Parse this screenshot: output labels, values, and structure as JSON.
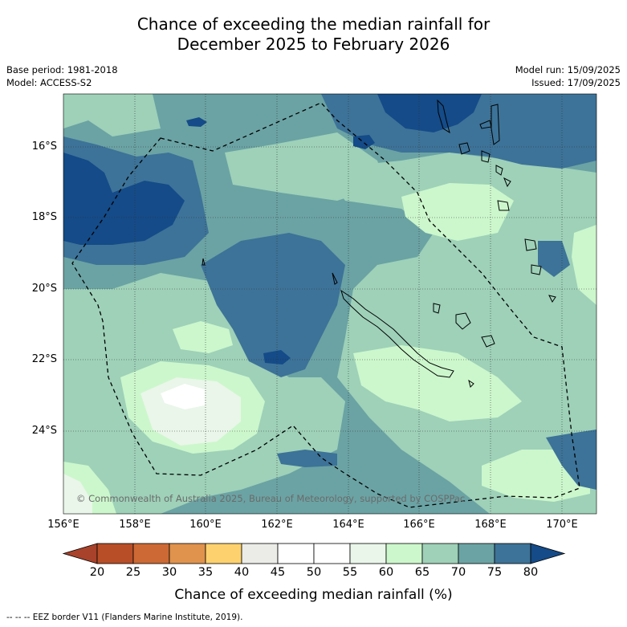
{
  "title": {
    "line1": "Chance of exceeding the median rainfall for",
    "line2": "December 2025 to February 2026"
  },
  "meta_left": {
    "base_period": "Base period: 1981-2018",
    "model": "Model: ACCESS-S2"
  },
  "meta_right": {
    "model_run": "Model run: 15/09/2025",
    "issued": "Issued: 17/09/2025"
  },
  "map": {
    "lat_labels": [
      "16°S",
      "18°S",
      "20°S",
      "22°S",
      "24°S"
    ],
    "lon_labels": [
      "156°E",
      "158°E",
      "160°E",
      "162°E",
      "164°E",
      "166°E",
      "168°E",
      "170°E"
    ],
    "copyright": "© Commonwealth of Australia 2025, Bureau of Meteorology, supported by COSPPac",
    "colors": {
      "c45_50": "#ffffff",
      "c55_60": "#e9f6e9",
      "c60_65": "#ccf7cc",
      "c65_70": "#9ed1b8",
      "c70_75": "#6ba3a4",
      "c75_80": "#3d7398",
      "c80_plus": "#144b88"
    },
    "eez_line_style": "dashed black"
  },
  "colorbar": {
    "ticks": [
      "20",
      "25",
      "30",
      "35",
      "40",
      "45",
      "50",
      "55",
      "60",
      "65",
      "70",
      "75",
      "80"
    ],
    "colors": [
      "#a8422a",
      "#b84e27",
      "#cd6934",
      "#e0934c",
      "#fdd26e",
      "#ebebe7",
      "#ffffff",
      "#ffffff",
      "#e9f6e9",
      "#ccf7cc",
      "#9ed1b8",
      "#6ba3a4",
      "#3d7398",
      "#144b88"
    ],
    "title": "Chance of exceeding median rainfall (%)"
  },
  "footnote": "--  --  -- EEZ border V11 (Flanders Marine Institute, 2019)."
}
